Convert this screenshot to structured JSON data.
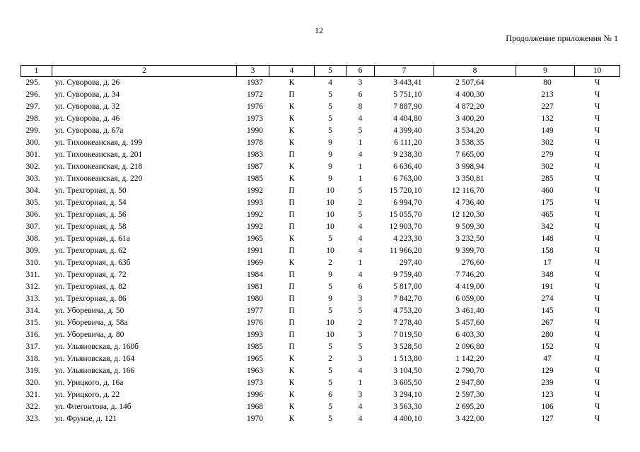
{
  "page_number": "12",
  "appendix_note": "Продолжение приложения № 1",
  "columns": [
    "1",
    "2",
    "3",
    "4",
    "5",
    "6",
    "7",
    "8",
    "9",
    "10"
  ],
  "rows": [
    [
      "295.",
      "ул. Суворова, д. 26",
      "1937",
      "К",
      "4",
      "3",
      "3 443,41",
      "2 507,64",
      "80",
      "Ч"
    ],
    [
      "296.",
      "ул. Суворова, д. 34",
      "1972",
      "П",
      "5",
      "6",
      "5 751,10",
      "4 400,30",
      "213",
      "Ч"
    ],
    [
      "297.",
      "ул. Суворова, д. 32",
      "1976",
      "К",
      "5",
      "8",
      "7 887,90",
      "4 872,20",
      "227",
      "Ч"
    ],
    [
      "298.",
      "ул. Суворова, д. 46",
      "1973",
      "К",
      "5",
      "4",
      "4 404,80",
      "3 400,20",
      "132",
      "Ч"
    ],
    [
      "299.",
      "ул. Суворова, д. 67а",
      "1990",
      "К",
      "5",
      "5",
      "4 399,40",
      "3 534,20",
      "149",
      "Ч"
    ],
    [
      "300.",
      "ул. Тихоокеанская, д. 199",
      "1978",
      "К",
      "9",
      "1",
      "6 111,20",
      "3 538,35",
      "302",
      "Ч"
    ],
    [
      "301.",
      "ул. Тихоокеанская, д. 201",
      "1983",
      "П",
      "9",
      "4",
      "9 238,30",
      "7 665,00",
      "279",
      "Ч"
    ],
    [
      "302.",
      "ул. Тихоокеанская, д. 218",
      "1987",
      "К",
      "9",
      "1",
      "6 636,40",
      "3 998,94",
      "302",
      "Ч"
    ],
    [
      "303.",
      "ул. Тихоокеанская, д. 220",
      "1985",
      "К",
      "9",
      "1",
      "6 763,00",
      "3 350,81",
      "285",
      "Ч"
    ],
    [
      "304.",
      "ул. Трехгорная, д. 50",
      "1992",
      "П",
      "10",
      "5",
      "15 720,10",
      "12 116,70",
      "460",
      "Ч"
    ],
    [
      "305.",
      "ул. Трехгорная, д. 54",
      "1993",
      "П",
      "10",
      "2",
      "6 994,70",
      "4 736,40",
      "175",
      "Ч"
    ],
    [
      "306.",
      "ул. Трехгорная, д. 56",
      "1992",
      "П",
      "10",
      "5",
      "15 055,70",
      "12 120,30",
      "465",
      "Ч"
    ],
    [
      "307.",
      "ул. Трехгорная, д. 58",
      "1992",
      "П",
      "10",
      "4",
      "12 903,70",
      "9 509,30",
      "342",
      "Ч"
    ],
    [
      "308.",
      "ул. Трехгорная, д. 61а",
      "1965",
      "К",
      "5",
      "4",
      "4 223,30",
      "3 232,50",
      "148",
      "Ч"
    ],
    [
      "309.",
      "ул. Трехгорная, д. 62",
      "1991",
      "П",
      "10",
      "4",
      "11 966,20",
      "9 399,70",
      "158",
      "Ч"
    ],
    [
      "310.",
      "ул. Трехгорная, д. 63б",
      "1969",
      "К",
      "2",
      "1",
      "297,40",
      "276,60",
      "17",
      "Ч"
    ],
    [
      "311.",
      "ул. Трехгорная, д. 72",
      "1984",
      "П",
      "9",
      "4",
      "9 759,40",
      "7 746,20",
      "348",
      "Ч"
    ],
    [
      "312.",
      "ул. Трехгорная, д. 82",
      "1981",
      "П",
      "5",
      "6",
      "5 817,00",
      "4 419,00",
      "191",
      "Ч"
    ],
    [
      "313.",
      "ул. Трехгорная, д. 86",
      "1980",
      "П",
      "9",
      "3",
      "7 842,70",
      "6 059,00",
      "274",
      "Ч"
    ],
    [
      "314.",
      "ул. Уборевича, д. 50",
      "1977",
      "П",
      "5",
      "5",
      "4 753,20",
      "3 461,40",
      "145",
      "Ч"
    ],
    [
      "315.",
      "ул. Уборевича, д. 58а",
      "1976",
      "П",
      "10",
      "2",
      "7 278,40",
      "5 457,60",
      "267",
      "Ч"
    ],
    [
      "316.",
      "ул. Уборевича, д. 80",
      "1993",
      "П",
      "10",
      "3",
      "7 019,50",
      "6 403,30",
      "280",
      "Ч"
    ],
    [
      "317.",
      "ул. Ульяновская, д. 160б",
      "1985",
      "П",
      "5",
      "5",
      "3 528,50",
      "2 096,80",
      "152",
      "Ч"
    ],
    [
      "318.",
      "ул. Ульяновская, д. 164",
      "1965",
      "К",
      "2",
      "3",
      "1 513,80",
      "1 142,20",
      "47",
      "Ч"
    ],
    [
      "319.",
      "ул. Ульяновская, д. 166",
      "1963",
      "К",
      "5",
      "4",
      "3 104,50",
      "2 790,70",
      "129",
      "Ч"
    ],
    [
      "320.",
      "ул. Урицкого, д. 16а",
      "1973",
      "К",
      "5",
      "1",
      "3 605,50",
      "2 947,80",
      "239",
      "Ч"
    ],
    [
      "321.",
      "ул. Урицкого, д. 22",
      "1996",
      "К",
      "6",
      "3",
      "3 294,10",
      "2 597,30",
      "123",
      "Ч"
    ],
    [
      "322.",
      "ул. Флегонтова, д. 14б",
      "1968",
      "К",
      "5",
      "4",
      "3 563,30",
      "2 695,20",
      "106",
      "Ч"
    ],
    [
      "323.",
      "ул. Фрунзе, д. 121",
      "1970",
      "К",
      "5",
      "4",
      "4 400,10",
      "3 422,00",
      "127",
      "Ч"
    ]
  ]
}
